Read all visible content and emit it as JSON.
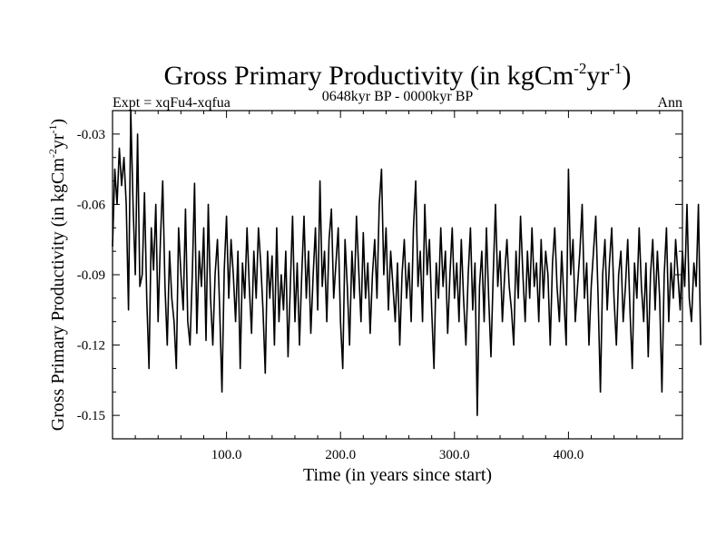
{
  "header": {
    "title_main": "Gross Primary Productivity (in kgCm",
    "title_sup1": "-2",
    "title_mid": "yr",
    "title_sup2": "-1",
    "title_end": ")",
    "expt": "Expt = xqFu4-xqfua",
    "period": "0648kyr BP - 0000kyr BP",
    "season": "Ann"
  },
  "chart_data": {
    "type": "line",
    "title": "Gross Primary Productivity (in kgCm-2yr-1)",
    "xlabel": "Time (in years since start)",
    "ylabel": "Gross Primary Productivity (in kgCm-2yr-1)",
    "ylabel_parts": {
      "main": "Gross Primary Productivity (in kgCm",
      "sup1": "-2",
      "mid": "yr",
      "sup2": "-1",
      "end": ")"
    },
    "xlim": [
      0,
      500
    ],
    "ylim": [
      -0.16,
      -0.02
    ],
    "x_ticks": [
      100,
      200,
      300,
      400
    ],
    "x_tick_labels": [
      "100.0",
      "200.0",
      "300.0",
      "400.0"
    ],
    "y_ticks": [
      -0.03,
      -0.06,
      -0.09,
      -0.12,
      -0.15
    ],
    "y_tick_labels": [
      "-0.03",
      "-0.06",
      "-0.09",
      "-0.12",
      "-0.15"
    ],
    "series": [
      {
        "name": "Gross Primary Productivity",
        "color": "#000000",
        "x_start": 0,
        "x_step": 2,
        "values": [
          -0.078,
          -0.045,
          -0.06,
          -0.036,
          -0.052,
          -0.04,
          -0.06,
          -0.105,
          -0.02,
          -0.06,
          -0.09,
          -0.03,
          -0.095,
          -0.09,
          -0.055,
          -0.1,
          -0.13,
          -0.07,
          -0.088,
          -0.06,
          -0.11,
          -0.075,
          -0.05,
          -0.095,
          -0.12,
          -0.08,
          -0.1,
          -0.11,
          -0.13,
          -0.07,
          -0.09,
          -0.105,
          -0.062,
          -0.11,
          -0.12,
          -0.09,
          -0.051,
          -0.115,
          -0.08,
          -0.095,
          -0.07,
          -0.118,
          -0.06,
          -0.1,
          -0.12,
          -0.09,
          -0.075,
          -0.105,
          -0.14,
          -0.088,
          -0.065,
          -0.1,
          -0.075,
          -0.09,
          -0.11,
          -0.08,
          -0.13,
          -0.085,
          -0.1,
          -0.07,
          -0.095,
          -0.115,
          -0.08,
          -0.1,
          -0.07,
          -0.085,
          -0.105,
          -0.132,
          -0.08,
          -0.1,
          -0.082,
          -0.12,
          -0.07,
          -0.11,
          -0.09,
          -0.105,
          -0.08,
          -0.125,
          -0.095,
          -0.065,
          -0.11,
          -0.085,
          -0.12,
          -0.09,
          -0.065,
          -0.1,
          -0.08,
          -0.115,
          -0.09,
          -0.07,
          -0.105,
          -0.05,
          -0.095,
          -0.08,
          -0.11,
          -0.075,
          -0.062,
          -0.1,
          -0.085,
          -0.07,
          -0.11,
          -0.13,
          -0.075,
          -0.095,
          -0.12,
          -0.08,
          -0.1,
          -0.065,
          -0.088,
          -0.11,
          -0.072,
          -0.1,
          -0.085,
          -0.115,
          -0.09,
          -0.075,
          -0.1,
          -0.06,
          -0.045,
          -0.09,
          -0.07,
          -0.105,
          -0.08,
          -0.095,
          -0.11,
          -0.085,
          -0.12,
          -0.09,
          -0.075,
          -0.1,
          -0.085,
          -0.11,
          -0.07,
          -0.05,
          -0.095,
          -0.08,
          -0.11,
          -0.06,
          -0.09,
          -0.075,
          -0.105,
          -0.13,
          -0.085,
          -0.1,
          -0.07,
          -0.095,
          -0.08,
          -0.115,
          -0.09,
          -0.07,
          -0.1,
          -0.085,
          -0.11,
          -0.075,
          -0.1,
          -0.12,
          -0.09,
          -0.07,
          -0.105,
          -0.085,
          -0.15,
          -0.095,
          -0.08,
          -0.11,
          -0.07,
          -0.1,
          -0.125,
          -0.09,
          -0.06,
          -0.095,
          -0.08,
          -0.11,
          -0.09,
          -0.075,
          -0.095,
          -0.105,
          -0.12,
          -0.08,
          -0.1,
          -0.065,
          -0.09,
          -0.11,
          -0.08,
          -0.1,
          -0.07,
          -0.095,
          -0.085,
          -0.11,
          -0.075,
          -0.1,
          -0.08,
          -0.09,
          -0.12,
          -0.085,
          -0.07,
          -0.095,
          -0.11,
          -0.08,
          -0.1,
          -0.12,
          -0.045,
          -0.09,
          -0.075,
          -0.11,
          -0.095,
          -0.08,
          -0.06,
          -0.1,
          -0.085,
          -0.12,
          -0.095,
          -0.08,
          -0.065,
          -0.1,
          -0.14,
          -0.09,
          -0.075,
          -0.105,
          -0.085,
          -0.07,
          -0.1,
          -0.12,
          -0.09,
          -0.08,
          -0.11,
          -0.095,
          -0.075,
          -0.105,
          -0.13,
          -0.085,
          -0.1,
          -0.07,
          -0.095,
          -0.11,
          -0.085,
          -0.125,
          -0.09,
          -0.075,
          -0.105,
          -0.08,
          -0.1,
          -0.14,
          -0.09,
          -0.07,
          -0.11,
          -0.085,
          -0.1,
          -0.075,
          -0.09,
          -0.105,
          -0.08,
          -0.095,
          -0.06,
          -0.1,
          -0.11,
          -0.085,
          -0.095,
          -0.06,
          -0.12
        ]
      }
    ]
  }
}
